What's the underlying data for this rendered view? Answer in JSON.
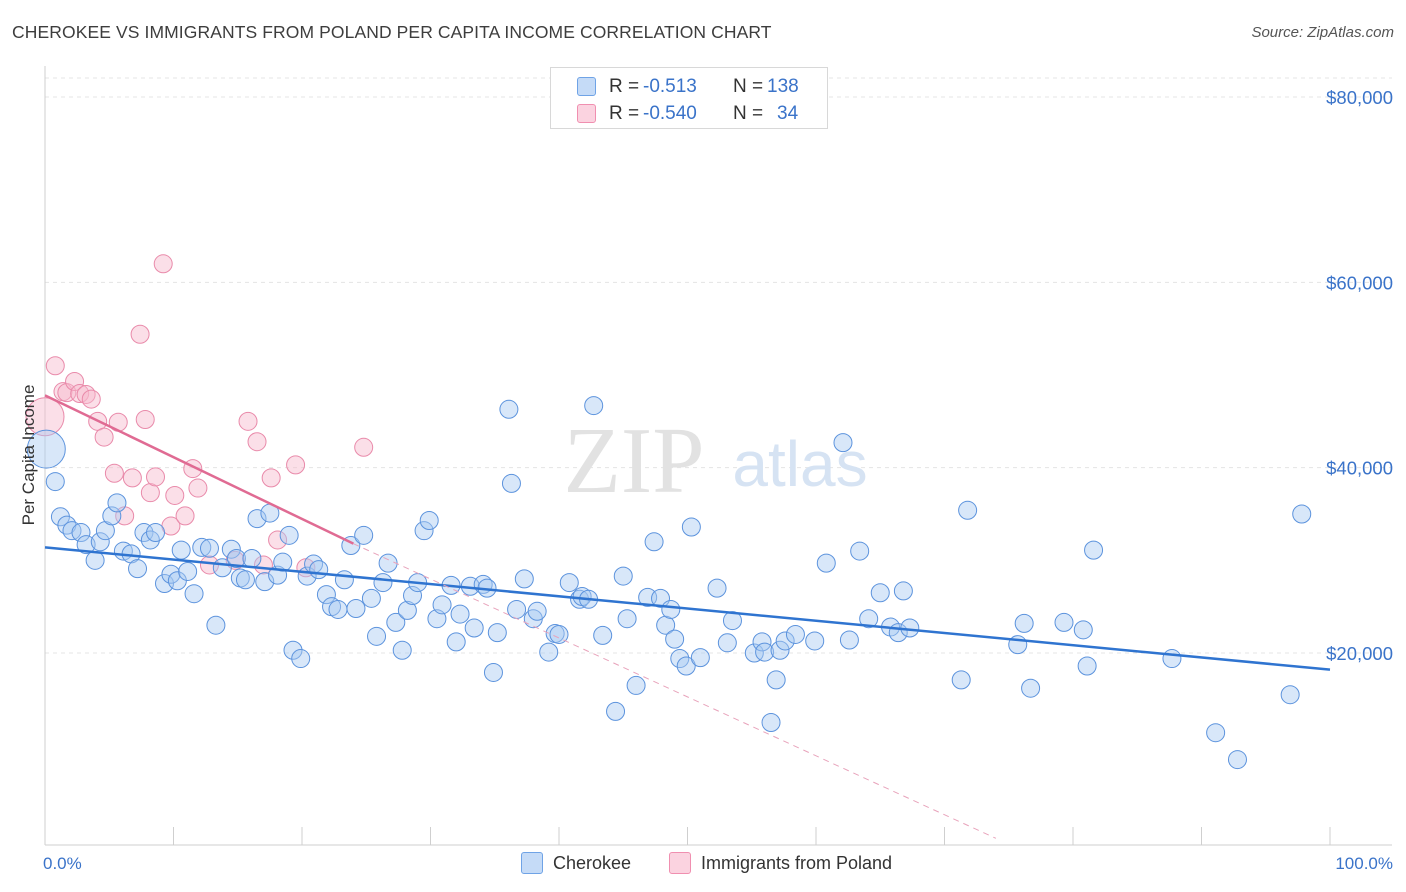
{
  "title": "CHEROKEE VS IMMIGRANTS FROM POLAND PER CAPITA INCOME CORRELATION CHART",
  "source": "Source: ZipAtlas.com",
  "watermark": {
    "zip": "ZIP",
    "atlas": "atlas"
  },
  "legend_top": [
    {
      "r_label": "R =",
      "r_value": "-0.513",
      "n_label": "N =",
      "n_value": "138",
      "color": "#6fa3e6"
    },
    {
      "r_label": "R =",
      "r_value": "-0.540",
      "n_label": "N =",
      "n_value": "34",
      "color": "#f08fb0"
    }
  ],
  "legend_bottom": [
    {
      "label": "Cherokee",
      "color": "#6fa3e6"
    },
    {
      "label": "Immigrants from Poland",
      "color": "#f08fb0"
    }
  ],
  "chart_data": {
    "type": "scatter",
    "title": "CHEROKEE VS IMMIGRANTS FROM POLAND PER CAPITA INCOME CORRELATION CHART",
    "xlabel": "",
    "ylabel": "Per Capita Income",
    "xlim": [
      0,
      100
    ],
    "ylim": [
      0,
      84000
    ],
    "x_tick_labels": [
      "0.0%",
      "100.0%"
    ],
    "y_ticks": [
      20000,
      40000,
      60000,
      80000
    ],
    "y_tick_labels": [
      "$20,000",
      "$40,000",
      "$60,000",
      "$80,000"
    ],
    "grid": true,
    "legend_position": "top-center",
    "series": [
      {
        "name": "Cherokee",
        "color": "#6fa3e6",
        "trend": {
          "x": [
            0,
            100
          ],
          "y": [
            31400,
            18200
          ]
        },
        "points": [
          [
            0.1,
            42000
          ],
          [
            0.8,
            38500
          ],
          [
            1.2,
            34700
          ],
          [
            1.7,
            33800
          ],
          [
            2.1,
            33200
          ],
          [
            2.8,
            33000
          ],
          [
            3.2,
            31700
          ],
          [
            3.9,
            30000
          ],
          [
            4.3,
            32000
          ],
          [
            4.7,
            33200
          ],
          [
            5.2,
            34800
          ],
          [
            5.6,
            36200
          ],
          [
            6.1,
            31000
          ],
          [
            6.7,
            30700
          ],
          [
            7.2,
            29100
          ],
          [
            7.7,
            33000
          ],
          [
            8.2,
            32200
          ],
          [
            8.6,
            33000
          ],
          [
            9.3,
            27500
          ],
          [
            9.8,
            28500
          ],
          [
            10.3,
            27800
          ],
          [
            10.6,
            31100
          ],
          [
            11.1,
            28800
          ],
          [
            11.6,
            26400
          ],
          [
            12.2,
            31400
          ],
          [
            12.8,
            31300
          ],
          [
            13.3,
            23000
          ],
          [
            13.8,
            29200
          ],
          [
            14.5,
            31200
          ],
          [
            14.9,
            30200
          ],
          [
            15.2,
            28100
          ],
          [
            15.6,
            27900
          ],
          [
            16.1,
            30200
          ],
          [
            16.5,
            34500
          ],
          [
            17.1,
            27700
          ],
          [
            17.5,
            35100
          ],
          [
            18.1,
            28400
          ],
          [
            18.5,
            29800
          ],
          [
            19.0,
            32700
          ],
          [
            19.3,
            20300
          ],
          [
            19.9,
            19400
          ],
          [
            20.4,
            28300
          ],
          [
            20.9,
            29600
          ],
          [
            21.3,
            29000
          ],
          [
            21.9,
            26300
          ],
          [
            22.3,
            25000
          ],
          [
            22.8,
            24700
          ],
          [
            23.3,
            27900
          ],
          [
            23.8,
            31600
          ],
          [
            24.2,
            24800
          ],
          [
            24.8,
            32700
          ],
          [
            25.4,
            25900
          ],
          [
            25.8,
            21800
          ],
          [
            26.3,
            27600
          ],
          [
            26.7,
            29700
          ],
          [
            27.3,
            23300
          ],
          [
            27.8,
            20300
          ],
          [
            28.2,
            24600
          ],
          [
            28.6,
            26200
          ],
          [
            29.0,
            27600
          ],
          [
            29.5,
            33200
          ],
          [
            29.9,
            34300
          ],
          [
            30.5,
            23700
          ],
          [
            30.9,
            25200
          ],
          [
            31.6,
            27300
          ],
          [
            32.0,
            21200
          ],
          [
            32.3,
            24200
          ],
          [
            33.1,
            27200
          ],
          [
            33.4,
            22700
          ],
          [
            34.1,
            27400
          ],
          [
            34.4,
            27000
          ],
          [
            34.9,
            17900
          ],
          [
            35.2,
            22200
          ],
          [
            36.1,
            46300
          ],
          [
            36.3,
            38300
          ],
          [
            36.7,
            24700
          ],
          [
            37.3,
            28000
          ],
          [
            38.0,
            23700
          ],
          [
            38.3,
            24500
          ],
          [
            39.2,
            20100
          ],
          [
            39.7,
            22100
          ],
          [
            40.0,
            22000
          ],
          [
            40.8,
            27600
          ],
          [
            41.6,
            25800
          ],
          [
            41.8,
            26100
          ],
          [
            42.3,
            25800
          ],
          [
            42.7,
            46700
          ],
          [
            43.4,
            21900
          ],
          [
            44.4,
            13700
          ],
          [
            45.0,
            28300
          ],
          [
            45.3,
            23700
          ],
          [
            46.0,
            16500
          ],
          [
            46.9,
            26000
          ],
          [
            47.4,
            32000
          ],
          [
            47.9,
            25900
          ],
          [
            48.3,
            23000
          ],
          [
            48.7,
            24700
          ],
          [
            49.0,
            21500
          ],
          [
            49.4,
            19400
          ],
          [
            49.9,
            18600
          ],
          [
            50.3,
            33600
          ],
          [
            51.0,
            19500
          ],
          [
            52.3,
            27000
          ],
          [
            53.1,
            21100
          ],
          [
            53.5,
            23500
          ],
          [
            55.2,
            20000
          ],
          [
            55.8,
            21200
          ],
          [
            56.0,
            20100
          ],
          [
            56.5,
            12500
          ],
          [
            56.9,
            17100
          ],
          [
            57.2,
            20300
          ],
          [
            57.6,
            21300
          ],
          [
            58.4,
            22000
          ],
          [
            59.9,
            21300
          ],
          [
            60.8,
            29700
          ],
          [
            62.1,
            42700
          ],
          [
            62.6,
            21400
          ],
          [
            63.4,
            31000
          ],
          [
            64.1,
            23700
          ],
          [
            65.0,
            26500
          ],
          [
            65.8,
            22800
          ],
          [
            66.4,
            22200
          ],
          [
            66.8,
            26700
          ],
          [
            67.3,
            22700
          ],
          [
            71.3,
            17100
          ],
          [
            71.8,
            35400
          ],
          [
            75.7,
            20900
          ],
          [
            76.2,
            23200
          ],
          [
            76.7,
            16200
          ],
          [
            79.3,
            23300
          ],
          [
            80.8,
            22500
          ],
          [
            81.1,
            18600
          ],
          [
            81.6,
            31100
          ],
          [
            87.7,
            19400
          ],
          [
            91.1,
            11400
          ],
          [
            92.8,
            8500
          ],
          [
            96.9,
            15500
          ],
          [
            97.8,
            35000
          ]
        ]
      },
      {
        "name": "Immigrants from Poland",
        "color": "#f08fb0",
        "trend": {
          "x": [
            0,
            24
          ],
          "y": [
            47800,
            31800
          ]
        },
        "trend_dashed": {
          "x": [
            24,
            74
          ],
          "y": [
            31800,
            0
          ]
        },
        "points": [
          [
            0.0,
            45500
          ],
          [
            0.8,
            51000
          ],
          [
            1.4,
            48200
          ],
          [
            1.7,
            48100
          ],
          [
            2.3,
            49300
          ],
          [
            2.7,
            48000
          ],
          [
            3.2,
            47900
          ],
          [
            3.6,
            47400
          ],
          [
            4.1,
            45000
          ],
          [
            4.6,
            43300
          ],
          [
            5.4,
            39400
          ],
          [
            5.7,
            44900
          ],
          [
            6.2,
            34800
          ],
          [
            6.8,
            38900
          ],
          [
            7.4,
            54400
          ],
          [
            7.8,
            45200
          ],
          [
            8.2,
            37300
          ],
          [
            8.6,
            39000
          ],
          [
            9.2,
            62000
          ],
          [
            9.8,
            33700
          ],
          [
            10.1,
            37000
          ],
          [
            10.9,
            34800
          ],
          [
            11.5,
            39900
          ],
          [
            11.9,
            37800
          ],
          [
            12.8,
            29500
          ],
          [
            14.8,
            30000
          ],
          [
            15.8,
            45000
          ],
          [
            16.5,
            42800
          ],
          [
            17.0,
            29500
          ],
          [
            17.6,
            38900
          ],
          [
            18.1,
            32200
          ],
          [
            19.5,
            40300
          ],
          [
            20.3,
            29200
          ],
          [
            24.8,
            42200
          ]
        ]
      }
    ]
  }
}
